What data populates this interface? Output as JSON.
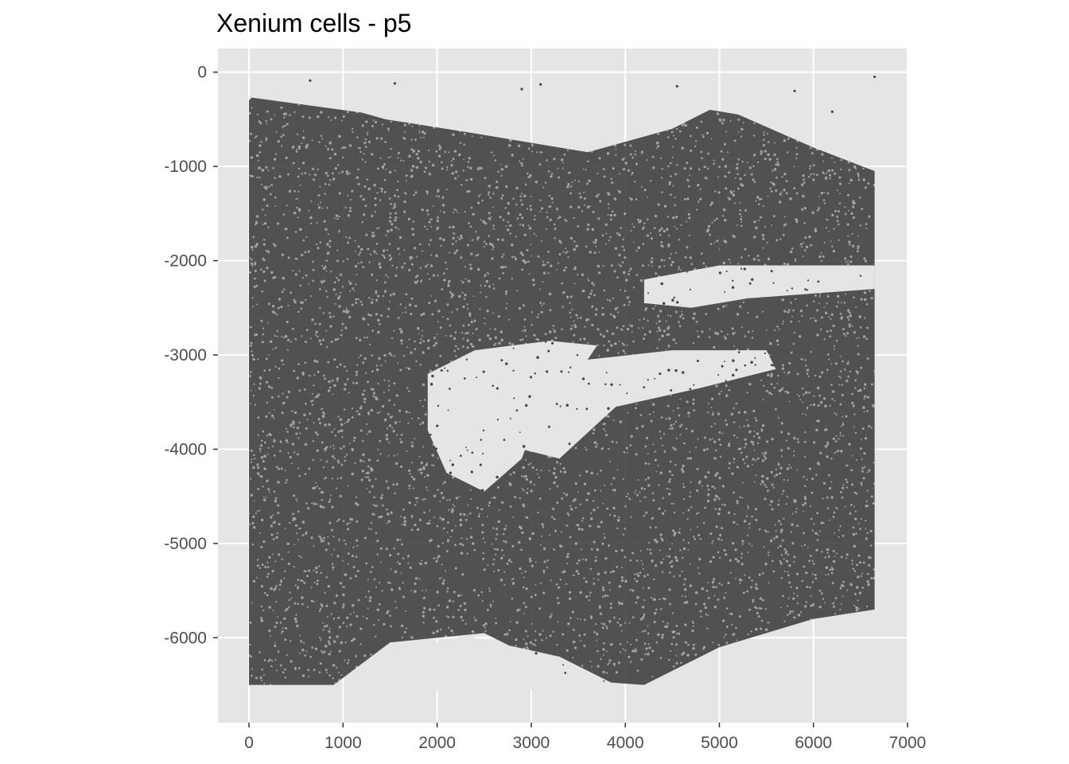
{
  "chart_data": {
    "type": "scatter",
    "title": "Xenium cells - p5",
    "xlabel": "",
    "ylabel": "",
    "xlim": [
      -330,
      7000
    ],
    "ylim": [
      -6900,
      250
    ],
    "x_ticks": [
      0,
      1000,
      2000,
      3000,
      4000,
      5000,
      6000,
      7000
    ],
    "x_tick_labels": [
      "0",
      "1000",
      "2000",
      "3000",
      "4000",
      "5000",
      "6000",
      "7000"
    ],
    "y_ticks": [
      0,
      -1000,
      -2000,
      -3000,
      -4000,
      -5000,
      -6000
    ],
    "y_tick_labels": [
      "0",
      "-1000",
      "-2000",
      "-3000",
      "-4000",
      "-5000",
      "-6000"
    ],
    "grid": true,
    "legend": "none",
    "colors": {
      "points": "#444444",
      "panel": "#e5e5e5",
      "grid": "#ffffff"
    },
    "tissue_outline": [
      [
        30,
        -270
      ],
      [
        1200,
        -430
      ],
      [
        1450,
        -500
      ],
      [
        2400,
        -650
      ],
      [
        3600,
        -850
      ],
      [
        4500,
        -600
      ],
      [
        4900,
        -400
      ],
      [
        5200,
        -450
      ],
      [
        6000,
        -800
      ],
      [
        6650,
        -1050
      ],
      [
        6650,
        -5700
      ],
      [
        6000,
        -5800
      ],
      [
        5000,
        -6100
      ],
      [
        4200,
        -6500
      ],
      [
        3500,
        -6450
      ],
      [
        2500,
        -5950
      ],
      [
        1500,
        -6050
      ],
      [
        900,
        -6500
      ],
      [
        0,
        -6500
      ],
      [
        0,
        -300
      ]
    ],
    "empty_regions": [
      [
        [
          1900,
          -3200
        ],
        [
          2400,
          -2950
        ],
        [
          3200,
          -2850
        ],
        [
          3700,
          -2900
        ],
        [
          3500,
          -3200
        ],
        [
          3100,
          -3550
        ],
        [
          2900,
          -4100
        ],
        [
          2500,
          -4450
        ],
        [
          2100,
          -4250
        ],
        [
          1900,
          -3800
        ]
      ],
      [
        [
          2900,
          -3300
        ],
        [
          3600,
          -3050
        ],
        [
          4500,
          -2950
        ],
        [
          5500,
          -2950
        ],
        [
          5600,
          -3150
        ],
        [
          4800,
          -3350
        ],
        [
          3900,
          -3550
        ],
        [
          3300,
          -4100
        ],
        [
          2900,
          -4000
        ]
      ],
      [
        [
          1400,
          -6200
        ],
        [
          2300,
          -5980
        ],
        [
          3300,
          -6200
        ],
        [
          4000,
          -6550
        ],
        [
          2600,
          -6550
        ],
        [
          1100,
          -6550
        ]
      ],
      [
        [
          4200,
          -2200
        ],
        [
          5000,
          -2050
        ],
        [
          6650,
          -2050
        ],
        [
          6650,
          -2300
        ],
        [
          5300,
          -2400
        ],
        [
          4700,
          -2500
        ],
        [
          4200,
          -2450
        ]
      ]
    ],
    "cell_count": 14000
  }
}
